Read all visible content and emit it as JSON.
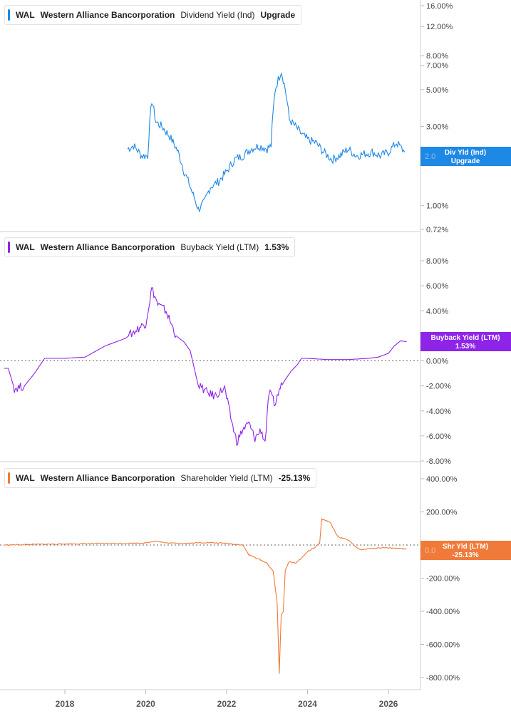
{
  "x_axis": {
    "ticks": [
      "2018",
      "2020",
      "2022",
      "2024",
      "2026"
    ]
  },
  "panels": [
    {
      "ticker": "WAL",
      "company": "Western Alliance Bancorporation",
      "metric": "Dividend Yield (Ind)",
      "legend_value": "Upgrade",
      "color": "#1e88e5",
      "tag_line1": "Div Yld (Ind)",
      "tag_line2": "Upgrade",
      "tag_overlay": "2.0"
    },
    {
      "ticker": "WAL",
      "company": "Western Alliance Bancorporation",
      "metric": "Buyback Yield (LTM)",
      "legend_value": "1.53%",
      "color": "#8e24e8",
      "tag_line1": "Buyback Yield (LTM)",
      "tag_line2": "1.53%"
    },
    {
      "ticker": "WAL",
      "company": "Western Alliance Bancorporation",
      "metric": "Shareholder Yield (LTM)",
      "legend_value": "-25.13%",
      "color": "#f07a3a",
      "tag_line1": "Shr Yld (LTM)",
      "tag_line2": "-25.13%",
      "tag_overlay": "0.0"
    }
  ],
  "chart_data": [
    {
      "type": "line",
      "scale": "log",
      "ylim": [
        0.72,
        16
      ],
      "y_ticks": [
        "16.00%",
        "12.00%",
        "8.00%",
        "7.00%",
        "5.00%",
        "3.00%",
        "1.00%",
        "0.72%"
      ],
      "y_tick_values": [
        16,
        12,
        8,
        7,
        5,
        3,
        1,
        0.72
      ],
      "series": [
        {
          "name": "Dividend Yield (Ind)",
          "x": [
            2019.55,
            2019.7,
            2019.9,
            2020.05,
            2020.15,
            2020.25,
            2020.4,
            2020.6,
            2020.8,
            2020.95,
            2021.15,
            2021.3,
            2021.45,
            2021.6,
            2021.8,
            2022.0,
            2022.2,
            2022.4,
            2022.6,
            2022.8,
            2023.0,
            2023.1,
            2023.2,
            2023.35,
            2023.45,
            2023.55,
            2023.7,
            2023.85,
            2024.0,
            2024.2,
            2024.4,
            2024.6,
            2024.8,
            2025.0,
            2025.2,
            2025.4,
            2025.6,
            2025.8,
            2026.0,
            2026.2,
            2026.4
          ],
          "values": [
            2.2,
            2.3,
            2.0,
            2.0,
            4.3,
            3.2,
            3.0,
            2.6,
            2.1,
            1.6,
            1.2,
            0.95,
            1.05,
            1.3,
            1.4,
            1.6,
            1.9,
            2.0,
            2.2,
            2.3,
            2.2,
            2.3,
            5.0,
            6.5,
            5.0,
            3.3,
            3.0,
            2.7,
            2.5,
            2.4,
            2.1,
            1.9,
            2.0,
            2.2,
            2.0,
            2.05,
            2.1,
            2.0,
            2.1,
            2.4,
            2.1
          ]
        }
      ]
    },
    {
      "type": "line",
      "scale": "linear",
      "ylim": [
        -8,
        9
      ],
      "y_ticks": [
        "8.00%",
        "6.00%",
        "4.00%",
        "2.00%",
        "0.00%",
        "-2.00%",
        "-4.00%",
        "-6.00%",
        "-8.00%"
      ],
      "y_tick_values": [
        8,
        6,
        4,
        2,
        0,
        -2,
        -4,
        -6,
        -8
      ],
      "series": [
        {
          "name": "Buyback Yield (LTM)",
          "x": [
            2016.5,
            2016.6,
            2016.75,
            2017.0,
            2017.25,
            2017.5,
            2018.0,
            2018.5,
            2019.0,
            2019.5,
            2019.7,
            2019.9,
            2020.0,
            2020.15,
            2020.3,
            2020.5,
            2020.75,
            2020.95,
            2021.1,
            2021.3,
            2021.4,
            2021.5,
            2021.7,
            2021.95,
            2022.1,
            2022.25,
            2022.4,
            2022.55,
            2022.7,
            2022.85,
            2022.95,
            2023.05,
            2023.2,
            2023.3,
            2023.45,
            2023.6,
            2023.75,
            2023.85,
            2024.0,
            2024.5,
            2025.0,
            2025.5,
            2025.75,
            2026.0,
            2026.15,
            2026.3,
            2026.45
          ],
          "values": [
            -0.6,
            -0.6,
            -2.2,
            -2.0,
            -1.0,
            0.2,
            0.2,
            0.3,
            1.2,
            1.8,
            2.3,
            2.8,
            3.0,
            5.8,
            4.5,
            4.0,
            2.0,
            1.5,
            0.8,
            -2.0,
            -2.2,
            -2.5,
            -2.8,
            -2.2,
            -4.5,
            -6.5,
            -5.5,
            -5.0,
            -6.2,
            -5.5,
            -6.5,
            -2.5,
            -3.5,
            -2.3,
            -1.5,
            -0.8,
            -0.3,
            0.2,
            0.2,
            0.1,
            0.1,
            0.2,
            0.3,
            0.6,
            1.2,
            1.6,
            1.53
          ]
        }
      ]
    },
    {
      "type": "line",
      "scale": "linear",
      "ylim": [
        -850,
        450
      ],
      "y_ticks": [
        "400.00%",
        "200.00%",
        "0.00%",
        "-200.00%",
        "-400.00%",
        "-600.00%",
        "-800.00%"
      ],
      "y_tick_values": [
        400,
        200,
        0,
        -200,
        -400,
        -600,
        -800
      ],
      "series": [
        {
          "name": "Shareholder Yield (LTM)",
          "x": [
            2016.5,
            2017.5,
            2018.5,
            2019.5,
            2020.0,
            2020.25,
            2020.5,
            2021.0,
            2021.5,
            2022.0,
            2022.4,
            2022.55,
            2022.75,
            2023.0,
            2023.15,
            2023.25,
            2023.3,
            2023.35,
            2023.4,
            2023.45,
            2023.55,
            2023.7,
            2023.85,
            2024.0,
            2024.15,
            2024.3,
            2024.35,
            2024.55,
            2024.75,
            2025.0,
            2025.3,
            2025.6,
            2025.9,
            2026.2,
            2026.45
          ],
          "values": [
            0,
            5,
            8,
            10,
            12,
            25,
            12,
            10,
            15,
            10,
            0,
            -60,
            -80,
            -110,
            -160,
            -350,
            -780,
            -420,
            -400,
            -150,
            -100,
            -110,
            -80,
            -40,
            -20,
            10,
            155,
            140,
            50,
            30,
            -30,
            -20,
            -15,
            -20,
            -25.13
          ]
        }
      ]
    }
  ]
}
